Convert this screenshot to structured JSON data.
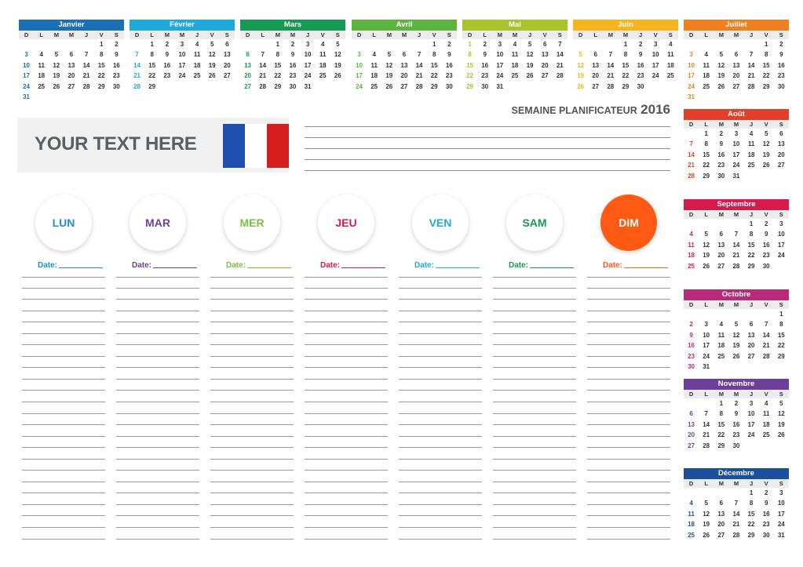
{
  "dow": [
    "D",
    "L",
    "M",
    "M",
    "J",
    "V",
    "S"
  ],
  "months": [
    {
      "name": "Janvier",
      "color": "#1a6fb5",
      "weeks": [
        [
          "",
          "",
          "",
          "",
          "",
          "1",
          "2"
        ],
        [
          "3",
          "4",
          "5",
          "6",
          "7",
          "8",
          "9"
        ],
        [
          "10",
          "11",
          "12",
          "13",
          "14",
          "15",
          "16"
        ],
        [
          "17",
          "18",
          "19",
          "20",
          "21",
          "22",
          "23"
        ],
        [
          "24",
          "25",
          "26",
          "27",
          "28",
          "29",
          "30"
        ],
        [
          "31",
          "",
          "",
          "",
          "",
          "",
          ""
        ]
      ]
    },
    {
      "name": "Février",
      "color": "#1eaadf",
      "weeks": [
        [
          "",
          "1",
          "2",
          "3",
          "4",
          "5",
          "6"
        ],
        [
          "7",
          "8",
          "9",
          "10",
          "11",
          "12",
          "13"
        ],
        [
          "14",
          "15",
          "16",
          "17",
          "18",
          "19",
          "20"
        ],
        [
          "21",
          "22",
          "23",
          "24",
          "25",
          "26",
          "27"
        ],
        [
          "28",
          "29",
          "",
          "",
          "",
          "",
          ""
        ]
      ]
    },
    {
      "name": "Mars",
      "color": "#149a52",
      "weeks": [
        [
          "",
          "",
          "1",
          "2",
          "3",
          "4",
          "5"
        ],
        [
          "6",
          "7",
          "8",
          "9",
          "10",
          "11",
          "12"
        ],
        [
          "13",
          "14",
          "15",
          "16",
          "17",
          "18",
          "19"
        ],
        [
          "20",
          "21",
          "22",
          "23",
          "24",
          "25",
          "26"
        ],
        [
          "27",
          "28",
          "29",
          "30",
          "31",
          "",
          ""
        ]
      ]
    },
    {
      "name": "Avril",
      "color": "#5db43f",
      "weeks": [
        [
          "",
          "",
          "",
          "",
          "",
          "1",
          "2"
        ],
        [
          "3",
          "4",
          "5",
          "6",
          "7",
          "8",
          "9"
        ],
        [
          "10",
          "11",
          "12",
          "13",
          "14",
          "15",
          "16"
        ],
        [
          "17",
          "18",
          "19",
          "20",
          "21",
          "22",
          "23"
        ],
        [
          "24",
          "25",
          "26",
          "27",
          "28",
          "29",
          "30"
        ]
      ]
    },
    {
      "name": "Mai",
      "color": "#a9c42a",
      "weeks": [
        [
          "1",
          "2",
          "3",
          "4",
          "5",
          "6",
          "7"
        ],
        [
          "8",
          "9",
          "10",
          "11",
          "12",
          "13",
          "14"
        ],
        [
          "15",
          "16",
          "17",
          "18",
          "19",
          "20",
          "21"
        ],
        [
          "22",
          "23",
          "24",
          "25",
          "26",
          "27",
          "28"
        ],
        [
          "29",
          "30",
          "31",
          "",
          "",
          "",
          ""
        ]
      ]
    },
    {
      "name": "Juin",
      "color": "#f6b51b",
      "weeks": [
        [
          "",
          "",
          "",
          "1",
          "2",
          "3",
          "4"
        ],
        [
          "5",
          "6",
          "7",
          "8",
          "9",
          "10",
          "11"
        ],
        [
          "12",
          "13",
          "14",
          "15",
          "16",
          "17",
          "18"
        ],
        [
          "19",
          "20",
          "21",
          "22",
          "23",
          "24",
          "25"
        ],
        [
          "26",
          "27",
          "28",
          "29",
          "30",
          "",
          ""
        ]
      ]
    },
    {
      "name": "Juillet",
      "color": "#f07f1e",
      "weeks": [
        [
          "",
          "",
          "",
          "",
          "",
          "1",
          "2"
        ],
        [
          "3",
          "4",
          "5",
          "6",
          "7",
          "8",
          "9"
        ],
        [
          "10",
          "11",
          "12",
          "13",
          "14",
          "15",
          "16"
        ],
        [
          "17",
          "18",
          "19",
          "20",
          "21",
          "22",
          "23"
        ],
        [
          "24",
          "25",
          "26",
          "27",
          "28",
          "29",
          "30"
        ],
        [
          "31",
          "",
          "",
          "",
          "",
          "",
          ""
        ]
      ]
    },
    {
      "name": "Août",
      "color": "#e2402b",
      "weeks": [
        [
          "",
          "1",
          "2",
          "3",
          "4",
          "5",
          "6"
        ],
        [
          "7",
          "8",
          "9",
          "10",
          "11",
          "12",
          "13"
        ],
        [
          "14",
          "15",
          "16",
          "17",
          "18",
          "19",
          "20"
        ],
        [
          "21",
          "22",
          "23",
          "24",
          "25",
          "26",
          "27"
        ],
        [
          "28",
          "29",
          "30",
          "31",
          "",
          "",
          ""
        ]
      ]
    },
    {
      "name": "Septembre",
      "color": "#d71a4c",
      "weeks": [
        [
          "",
          "",
          "",
          "",
          "1",
          "2",
          "3"
        ],
        [
          "4",
          "5",
          "6",
          "7",
          "8",
          "9",
          "10"
        ],
        [
          "11",
          "12",
          "13",
          "14",
          "15",
          "16",
          "17"
        ],
        [
          "18",
          "19",
          "20",
          "21",
          "22",
          "23",
          "24"
        ],
        [
          "25",
          "26",
          "27",
          "28",
          "29",
          "30",
          ""
        ]
      ]
    },
    {
      "name": "Octobre",
      "color": "#b92a78",
      "weeks": [
        [
          "",
          "",
          "",
          "",
          "",
          "",
          "1"
        ],
        [
          "2",
          "3",
          "4",
          "5",
          "6",
          "7",
          "8"
        ],
        [
          "9",
          "10",
          "11",
          "12",
          "13",
          "14",
          "15"
        ],
        [
          "16",
          "17",
          "18",
          "19",
          "20",
          "21",
          "22"
        ],
        [
          "23",
          "24",
          "25",
          "26",
          "27",
          "28",
          "29"
        ],
        [
          "30",
          "31",
          "",
          "",
          "",
          "",
          ""
        ]
      ]
    },
    {
      "name": "Novembre",
      "color": "#6e3f98",
      "weeks": [
        [
          "",
          "",
          "1",
          "2",
          "3",
          "4",
          "5"
        ],
        [
          "6",
          "7",
          "8",
          "9",
          "10",
          "11",
          "12"
        ],
        [
          "13",
          "14",
          "15",
          "16",
          "17",
          "18",
          "19"
        ],
        [
          "20",
          "21",
          "22",
          "23",
          "24",
          "25",
          "26"
        ],
        [
          "27",
          "28",
          "29",
          "30",
          "",
          "",
          ""
        ]
      ]
    },
    {
      "name": "Décembre",
      "color": "#1a4f9c",
      "weeks": [
        [
          "",
          "",
          "",
          "",
          "1",
          "2",
          "3"
        ],
        [
          "4",
          "5",
          "6",
          "7",
          "8",
          "9",
          "10"
        ],
        [
          "11",
          "12",
          "13",
          "14",
          "15",
          "16",
          "17"
        ],
        [
          "18",
          "19",
          "20",
          "21",
          "22",
          "23",
          "24"
        ],
        [
          "25",
          "26",
          "27",
          "28",
          "29",
          "30",
          "31"
        ]
      ]
    }
  ],
  "planner_title": "SEMAINE PLANIFICATEUR",
  "planner_year": "2016",
  "banner_text": "YOUR TEXT HERE",
  "flag_colors": [
    "#1f4fb0",
    "#ffffff",
    "#d71e1e"
  ],
  "date_label": "Date:",
  "days": [
    {
      "label": "LUN",
      "color": "#1e8fc9"
    },
    {
      "label": "MAR",
      "color": "#6e3f98"
    },
    {
      "label": "MER",
      "color": "#7bbf3d"
    },
    {
      "label": "JEU",
      "color": "#d71a4c"
    },
    {
      "label": "VEN",
      "color": "#1eaadf"
    },
    {
      "label": "SAM",
      "color": "#149a52"
    },
    {
      "label": "DIM",
      "color": "#ffffff",
      "fill": "#ff5a14",
      "label_color": "#ff5a14"
    }
  ]
}
